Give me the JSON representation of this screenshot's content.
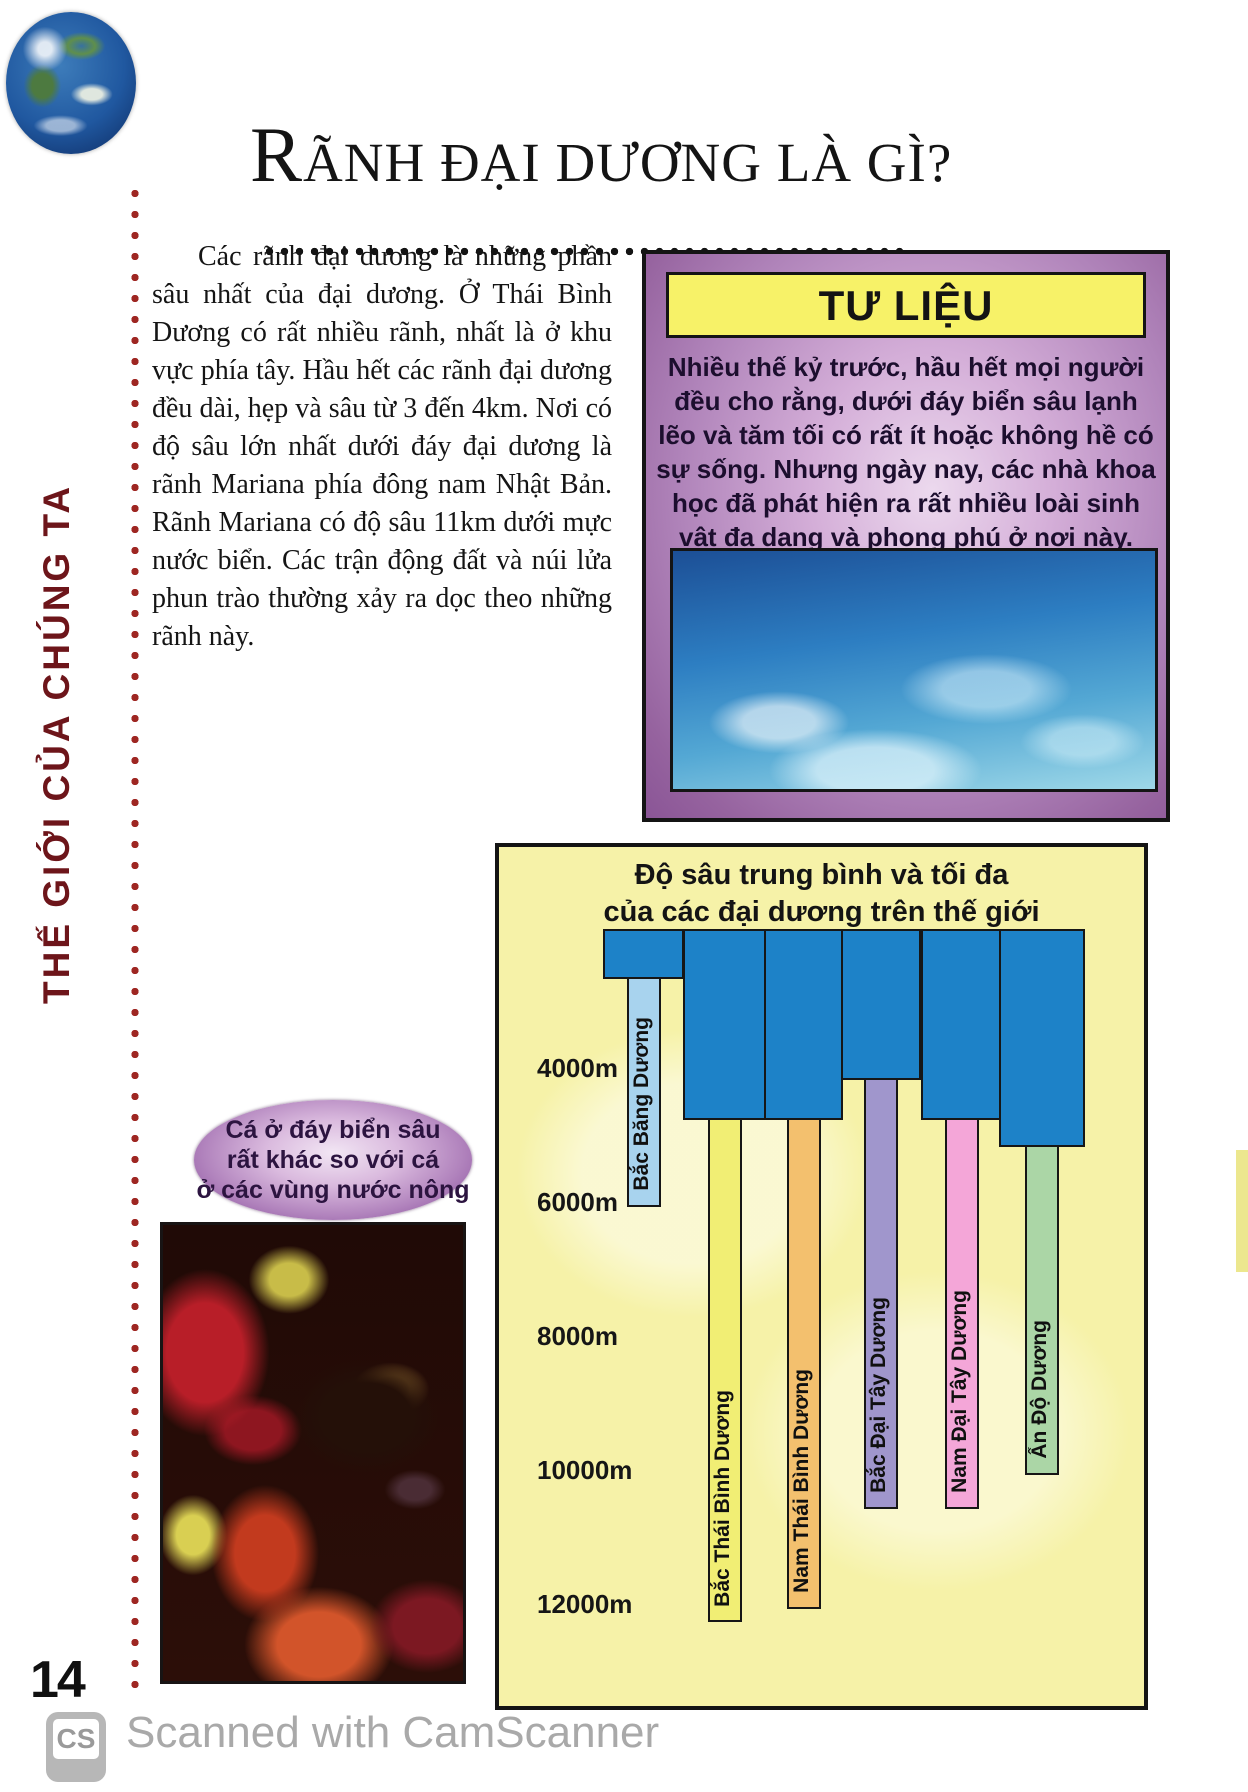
{
  "page": {
    "title": "RÃNH ĐẠI DƯƠNG LÀ GÌ?",
    "sidebar_text": "THẾ GIỚI CỦA CHÚNG TA",
    "page_number": "14",
    "intro_paragraph": "Các rãnh đại dương là những phần sâu nhất của đại dương. Ở Thái Bình Dương có rất nhiều rãnh, nhất là ở khu vực phía tây. Hầu hết các rãnh đại dương đều dài, hẹp và sâu từ 3 đến 4km. Nơi có độ sâu lớn nhất dưới đáy đại dương là rãnh Mariana phía đông nam Nhật Bản. Rãnh Mariana có độ sâu 11km dưới mực nước biển. Các trận động đất và núi lửa phun trào thường xảy ra dọc theo những rãnh này."
  },
  "fact_box": {
    "header": "TƯ LIỆU",
    "body": "Nhiều thế kỷ trước, hầu hết mọi người đều cho rằng, dưới đáy biển sâu lạnh lẽo và tăm tối có rất ít hoặc không hề có sự sống. Nhưng ngày nay, các nhà khoa học đã phát hiện ra rất nhiều loài sinh vật đa dạng và phong phú ở nơi này."
  },
  "callout": {
    "lines": [
      "Cá ở đáy biển sâu",
      "rất khác so với cá",
      "ở các vùng nước nông"
    ]
  },
  "watermark": {
    "logo": "CS",
    "text": "Scanned with CamScanner"
  },
  "colors": {
    "fact_box_purple": "#96639f",
    "fact_box_header_yellow": "#f7f268",
    "chart_background_yellow": "#f6f2a8",
    "sidebar_red": "#6d151a",
    "dotted_rule_red": "#9e2622"
  },
  "chart_data": {
    "type": "bar",
    "title": "Độ sâu trung bình và tối đa của các đại dương trên thế giới",
    "title_lines": [
      "Độ sâu trung bình và tối đa",
      "của các đại dương trên thế giới"
    ],
    "orientation": "depth-downward",
    "unit": "m",
    "y_ticks": [
      4000,
      6000,
      8000,
      10000,
      12000
    ],
    "y_tick_labels": [
      "4000m",
      "6000m",
      "8000m",
      "10000m",
      "12000m"
    ],
    "ylim": [
      2000,
      13000
    ],
    "grid": false,
    "legend": false,
    "categories": [
      "Bắc Băng Dương",
      "Bắc Thái Bình Dương",
      "Nam Thái Bình Dương",
      "Bắc Đại Tây Dương",
      "Nam Đại Tây Dương",
      "Ấn Độ Dương"
    ],
    "series": [
      {
        "name": "Độ sâu trung bình",
        "values": [
          2600,
          4700,
          4700,
          4100,
          4700,
          5100
        ],
        "color": "#1d82c8"
      },
      {
        "name": "Độ sâu tối đa",
        "values": [
          6000,
          12200,
          12000,
          10500,
          10500,
          10000
        ],
        "colors": [
          "#a8d3ee",
          "#f1ee74",
          "#f3c06e",
          "#a096cc",
          "#f4a6d8",
          "#abd6a6"
        ]
      }
    ]
  }
}
